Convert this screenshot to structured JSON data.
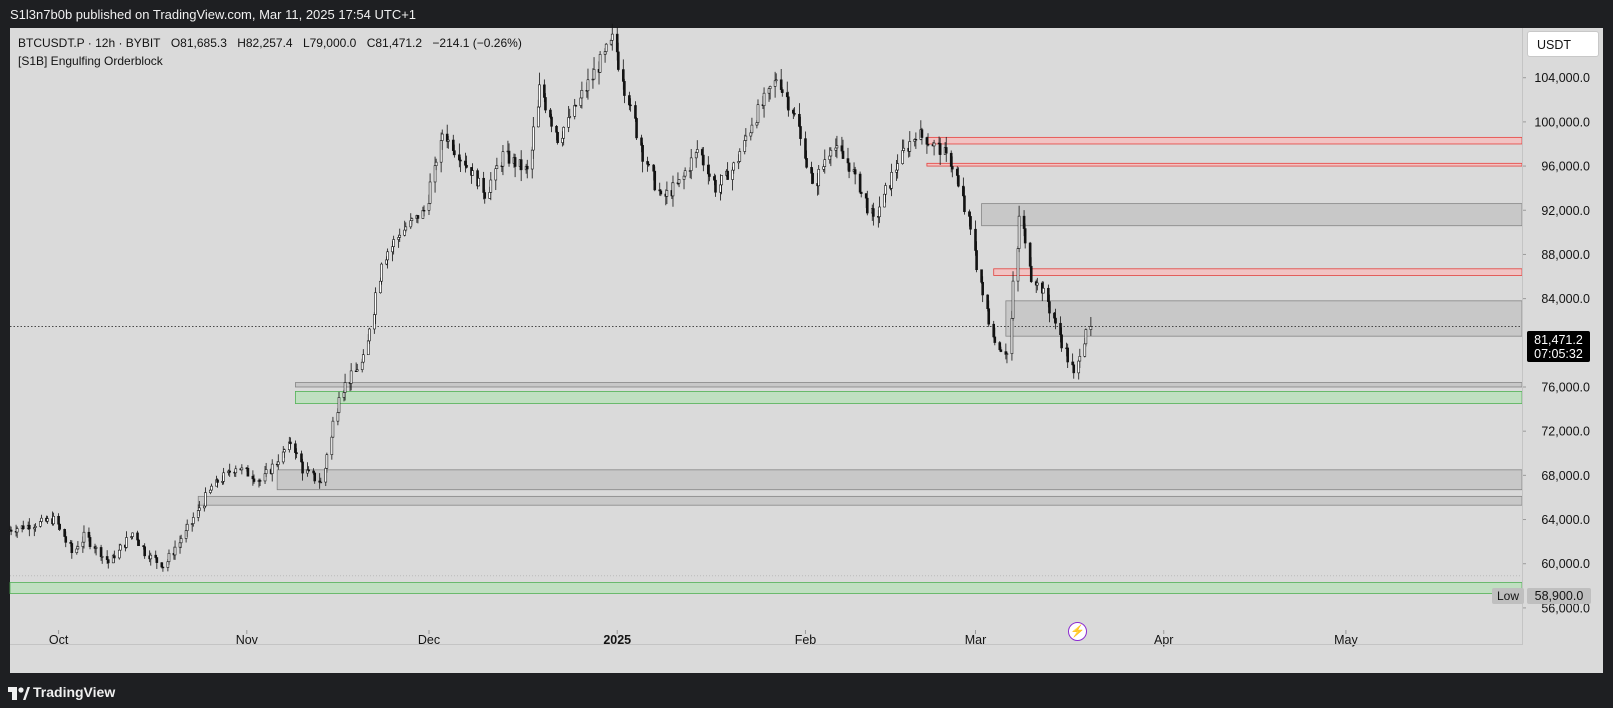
{
  "header": {
    "publisher_text": "S1l3n7b0b published on TradingView.com, Mar 11, 2025 17:54 UTC+1"
  },
  "legend": {
    "symbol": "BTCUSDT.P · 12h · BYBIT",
    "open": "O81,685.3",
    "high": "H82,257.4",
    "low": "L79,000.0",
    "close": "C81,471.2",
    "change": "−214.1 (−0.26%)",
    "indicator": "[S1B] Engulfing Orderblock"
  },
  "currency_button": "USDT",
  "last_price": {
    "value": "81,471.2",
    "countdown": "07:05:32"
  },
  "low_marker": {
    "label": "Low",
    "value": "58,900.0"
  },
  "footer": {
    "brand": "TradingView"
  },
  "event_icon": "lightning-icon",
  "colors": {
    "background": "#dadada",
    "bullish_zone": "#bfe0c0",
    "bullish_line": "#4caf50",
    "bearish_zone": "#f3c2c2",
    "bearish_line": "#e53935",
    "neutral_zone": "#c8c8c8",
    "candle": "#131313"
  },
  "chart_data": {
    "type": "candlestick",
    "symbol": "BTCUSDT.P",
    "interval": "12h",
    "exchange": "BYBIT",
    "price_axis": {
      "ticks": [
        56000,
        60000,
        64000,
        68000,
        72000,
        76000,
        80000,
        84000,
        88000,
        92000,
        96000,
        100000,
        104000
      ],
      "tick_labels": [
        "56,000.0",
        "60,000.0",
        "64,000.0",
        "68,000.0",
        "72,000.0",
        "76,000.0",
        "",
        "84,000.0",
        "88,000.0",
        "92,000.0",
        "96,000.0",
        "100,000.0",
        "104,000.0"
      ],
      "ylim": [
        54000,
        108500
      ]
    },
    "time_axis": {
      "start": "2024-09-23",
      "end": "2025-05-30",
      "labels": [
        {
          "date": "2024-10-01",
          "text": "Oct",
          "bold": false
        },
        {
          "date": "2024-11-01",
          "text": "Nov",
          "bold": false
        },
        {
          "date": "2024-12-01",
          "text": "Dec",
          "bold": false
        },
        {
          "date": "2025-01-01",
          "text": "2025",
          "bold": true
        },
        {
          "date": "2025-02-01",
          "text": "Feb",
          "bold": false
        },
        {
          "date": "2025-03-01",
          "text": "Mar",
          "bold": false
        },
        {
          "date": "2025-04-01",
          "text": "Apr",
          "bold": false
        },
        {
          "date": "2025-05-01",
          "text": "May",
          "bold": false
        }
      ]
    },
    "price_path": [
      [
        "2024-09-23",
        63000
      ],
      [
        "2024-10-01",
        64000
      ],
      [
        "2024-10-04",
        61000
      ],
      [
        "2024-10-06",
        62500
      ],
      [
        "2024-10-10",
        60100
      ],
      [
        "2024-10-14",
        62800
      ],
      [
        "2024-10-16",
        61000
      ],
      [
        "2024-10-19",
        59800
      ],
      [
        "2024-10-23",
        63200
      ],
      [
        "2024-10-27",
        67000
      ],
      [
        "2024-10-31",
        68800
      ],
      [
        "2024-11-04",
        67500
      ],
      [
        "2024-11-07",
        69500
      ],
      [
        "2024-11-09",
        71000
      ],
      [
        "2024-11-11",
        68500
      ],
      [
        "2024-11-14",
        67300
      ],
      [
        "2024-11-17",
        75500
      ],
      [
        "2024-11-21",
        78500
      ],
      [
        "2024-11-24",
        87500
      ],
      [
        "2024-11-27",
        90000
      ],
      [
        "2024-12-01",
        92000
      ],
      [
        "2024-12-04",
        99000
      ],
      [
        "2024-12-08",
        96000
      ],
      [
        "2024-12-11",
        93500
      ],
      [
        "2024-12-14",
        97000
      ],
      [
        "2024-12-18",
        95500
      ],
      [
        "2024-12-20",
        103000
      ],
      [
        "2024-12-23",
        98500
      ],
      [
        "2024-12-27",
        102500
      ],
      [
        "2025-01-01",
        107500
      ],
      [
        "2025-01-03",
        103000
      ],
      [
        "2025-01-06",
        97000
      ],
      [
        "2025-01-09",
        93000
      ],
      [
        "2025-01-12",
        94500
      ],
      [
        "2025-01-15",
        97500
      ],
      [
        "2025-01-18",
        94000
      ],
      [
        "2025-01-21",
        96000
      ],
      [
        "2025-01-24",
        100000
      ],
      [
        "2025-01-28",
        104000
      ],
      [
        "2025-01-31",
        100500
      ],
      [
        "2025-02-03",
        94000
      ],
      [
        "2025-02-06",
        98000
      ],
      [
        "2025-02-09",
        96000
      ],
      [
        "2025-02-13",
        91000
      ],
      [
        "2025-02-17",
        96500
      ],
      [
        "2025-02-20",
        99000
      ],
      [
        "2025-02-24",
        97500
      ],
      [
        "2025-02-26",
        96000
      ],
      [
        "2025-03-01",
        90000
      ],
      [
        "2025-03-03",
        84000
      ],
      [
        "2025-03-05",
        80000
      ],
      [
        "2025-03-07",
        79000
      ],
      [
        "2025-03-09",
        91500
      ],
      [
        "2025-03-11",
        86000
      ],
      [
        "2025-03-13",
        84500
      ],
      [
        "2025-03-16",
        80000
      ],
      [
        "2025-03-18",
        77000
      ],
      [
        "2025-03-20",
        81471.2
      ]
    ],
    "last_close": 81471.2,
    "zones": [
      {
        "kind": "bearish",
        "start": "2025-02-21",
        "top": 98600,
        "bottom": 98000
      },
      {
        "kind": "bearish",
        "start": "2025-02-21",
        "top": 96250,
        "bottom": 96000
      },
      {
        "kind": "neutral",
        "start": "2025-03-02",
        "top": 92600,
        "bottom": 90600
      },
      {
        "kind": "bearish",
        "start": "2025-03-04",
        "top": 86700,
        "bottom": 86100
      },
      {
        "kind": "neutral",
        "start": "2025-03-06",
        "top": 83800,
        "bottom": 80600
      },
      {
        "kind": "neutral",
        "start": "2024-11-09",
        "top": 76400,
        "bottom": 76000
      },
      {
        "kind": "bullish",
        "start": "2024-11-09",
        "top": 75600,
        "bottom": 74500
      },
      {
        "kind": "neutral",
        "start": "2024-11-06",
        "top": 68500,
        "bottom": 66700
      },
      {
        "kind": "neutral",
        "start": "2024-10-24",
        "top": 66100,
        "bottom": 65300
      },
      {
        "kind": "bullish",
        "start": "2024-09-23",
        "top": 58300,
        "bottom": 57300
      }
    ],
    "last_price_line": 81471.2,
    "low_line": 58900,
    "grid": false
  }
}
